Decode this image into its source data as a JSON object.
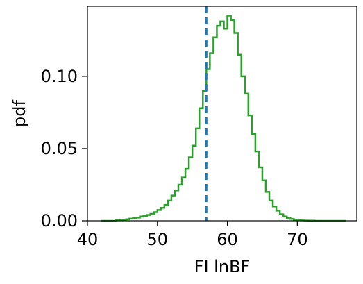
{
  "chart_data": {
    "type": "histogram",
    "xlabel": "FI lnBF",
    "ylabel": "pdf",
    "xlim": [
      40,
      78.5
    ],
    "ylim": [
      0,
      0.1485
    ],
    "xticks": [
      40,
      50,
      60,
      70
    ],
    "xtick_labels": [
      "40",
      "50",
      "60",
      "70"
    ],
    "yticks": [
      0,
      0.05,
      0.1
    ],
    "ytick_labels": [
      "0.00",
      "0.05",
      "0.10"
    ],
    "grid": false,
    "series": [
      {
        "kind": "step-histogram",
        "color": "#2ca02c",
        "bin_width": 0.5,
        "x_start": 42,
        "x_end": 77,
        "values": [
          0.0,
          0.0,
          0.0,
          0.0,
          0.0005,
          0.0005,
          0.0007,
          0.001,
          0.0015,
          0.002,
          0.0022,
          0.003,
          0.0035,
          0.004,
          0.0048,
          0.006,
          0.0075,
          0.009,
          0.011,
          0.014,
          0.0175,
          0.021,
          0.025,
          0.03,
          0.036,
          0.044,
          0.052,
          0.064,
          0.078,
          0.09,
          0.105,
          0.116,
          0.127,
          0.135,
          0.138,
          0.133,
          0.142,
          0.139,
          0.13,
          0.115,
          0.1,
          0.088,
          0.073,
          0.06,
          0.048,
          0.037,
          0.028,
          0.02,
          0.014,
          0.01,
          0.007,
          0.0045,
          0.003,
          0.002,
          0.0013,
          0.0008,
          0.0005,
          0.0003,
          0.0002,
          0.0001,
          0.0001,
          0.0,
          0.0,
          0.0,
          0.0,
          0.0,
          0.0,
          0.0,
          0.0,
          0.0
        ]
      },
      {
        "kind": "vertical-dashed-line",
        "x": 57,
        "color": "#1f77b4"
      }
    ]
  }
}
